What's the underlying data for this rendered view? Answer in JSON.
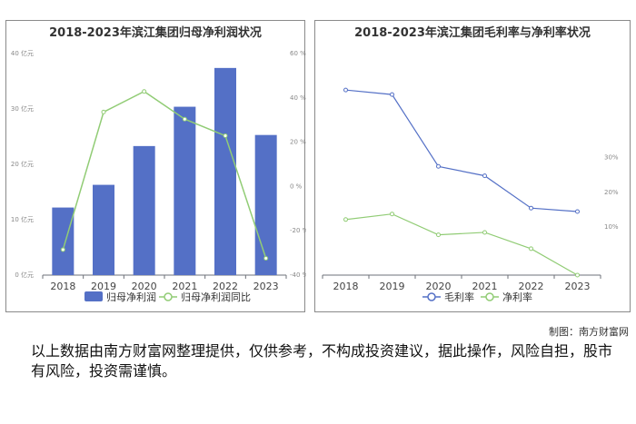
{
  "charts_text": {
    "left_title": "2018-2023年滨江集团归母净利润状况",
    "right_title": "2018-2023年滨江集团毛利率与净利率状况"
  },
  "chart_data": [
    {
      "type": "bar",
      "title": "2018-2023年滨江集团归母净利润状况",
      "categories": [
        "2018",
        "2019",
        "2020",
        "2021",
        "2022",
        "2023"
      ],
      "series": [
        {
          "name": "归母净利润",
          "type": "bar",
          "axis": "left",
          "color": "#5470c6",
          "values": [
            12.2,
            16.3,
            23.3,
            30.4,
            37.4,
            25.3
          ]
        },
        {
          "name": "归母净利润同比",
          "type": "line",
          "axis": "right",
          "color": "#91cc75",
          "values": [
            -28.5,
            33.6,
            42.9,
            30.4,
            22.9,
            -32.4
          ]
        }
      ],
      "y_left": {
        "min": 0,
        "max": 40,
        "ticks": [
          "0 亿元",
          "10 亿元",
          "20 亿元",
          "30 亿元",
          "40 亿元"
        ]
      },
      "y_right": {
        "min": -40,
        "max": 60,
        "ticks": [
          "-40 %",
          "-20 %",
          "0 %",
          "20 %",
          "40 %",
          "60 %"
        ]
      },
      "grid": false,
      "legend": "bottom"
    },
    {
      "type": "line",
      "title": "2018-2023年滨江集团毛利率与净利率状况",
      "categories": [
        "2018",
        "2019",
        "2020",
        "2021",
        "2022",
        "2023"
      ],
      "series": [
        {
          "name": "毛利率",
          "color": "#5470c6",
          "values": [
            49.5,
            48.2,
            27.5,
            24.8,
            15.5,
            14.5
          ]
        },
        {
          "name": "净利率",
          "color": "#91cc75",
          "values": [
            12.2,
            13.8,
            7.8,
            8.5,
            3.8,
            -3.8
          ]
        }
      ],
      "y": {
        "min": -3.8,
        "max": 60,
        "ticks": [
          "10%",
          "20%",
          "30%"
        ],
        "tick_values": [
          10,
          20,
          30
        ]
      },
      "grid": false,
      "legend": "bottom"
    }
  ],
  "footer": {
    "credit": "制图：南方财富网",
    "disclaimer": "以上数据由南方财富网整理提供，仅供参考，不构成投资建议，据此操作，风险自担，股市有风险，投资需谨慎。"
  }
}
